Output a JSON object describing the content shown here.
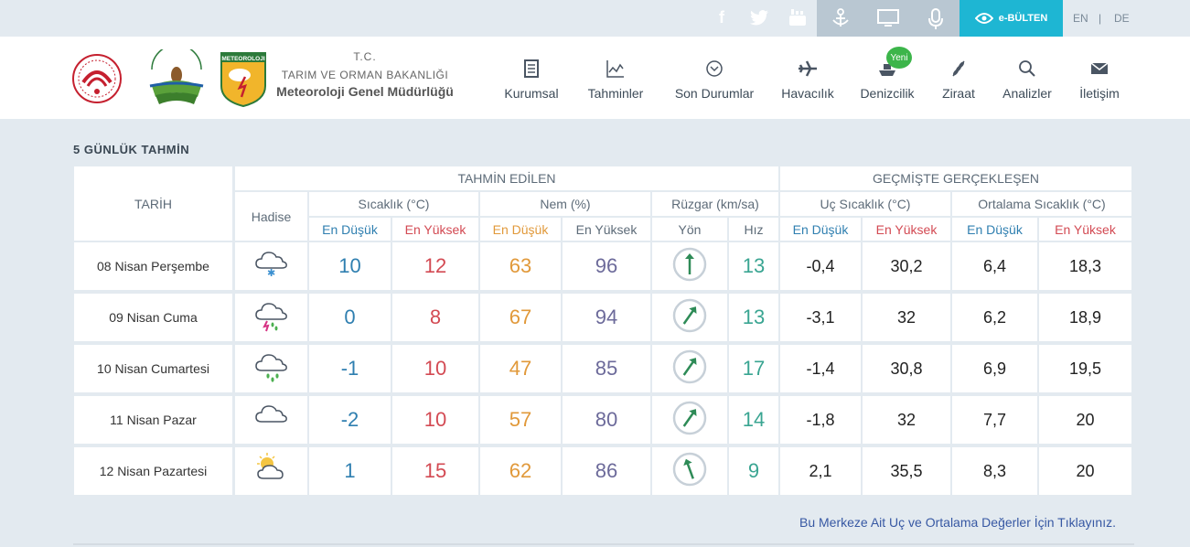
{
  "topbar": {
    "social": [
      "facebook-icon",
      "twitter-icon",
      "youtube-icon"
    ],
    "tools": [
      "sailor-icon",
      "monitor-icon",
      "microphone-icon"
    ],
    "ebulten_label": "e-BÜLTEN",
    "lang_en": "EN",
    "lang_sep": "|",
    "lang_de": "DE"
  },
  "header": {
    "ministry_line1": "T.C.",
    "ministry_line2": "TARIM VE ORMAN BAKANLIĞI",
    "ministry_line3": "Meteoroloji Genel Müdürlüğü",
    "logo3_text": "METEOROLOJI",
    "nav": [
      {
        "label": "Kurumsal",
        "icon": "document-icon"
      },
      {
        "label": "Tahminler",
        "icon": "chart-icon"
      },
      {
        "label": "Son Durumlar",
        "icon": "chevron-circle-icon"
      },
      {
        "label": "Havacılık",
        "icon": "airplane-icon"
      },
      {
        "label": "Denizcilik",
        "icon": "ship-icon"
      },
      {
        "label": "Ziraat",
        "icon": "wheat-icon"
      },
      {
        "label": "Analizler",
        "icon": "search-chart-icon"
      },
      {
        "label": "İletişim",
        "icon": "envelope-icon"
      }
    ],
    "new_badge": "Yeni"
  },
  "forecast": {
    "title": "5 GÜNLÜK TAHMİN",
    "head_date": "TARİH",
    "head_forecast": "TAHMİN EDİLEN",
    "head_past": "GEÇMİŞTE GERÇEKLEŞEN",
    "head_event": "Hadise",
    "head_temp": "Sıcaklık (°C)",
    "head_hum": "Nem (%)",
    "head_wind": "Rüzgar (km/sa)",
    "head_extreme": "Uç Sıcaklık (°C)",
    "head_avg": "Ortalama Sıcaklık (°C)",
    "sub_low": "En Düşük",
    "sub_high": "En Yüksek",
    "sub_dir": "Yön",
    "sub_speed": "Hız",
    "colors": {
      "blue": "#2f7fb0",
      "red": "#d34a53",
      "orange": "#e1993a",
      "purple": "#6c6a9a",
      "teal": "#3aa592"
    },
    "rows": [
      {
        "date": "08 Nisan Perşembe",
        "icon": "cloud-snow-icon",
        "t_low": "10",
        "t_high": "12",
        "h_low": "63",
        "h_high": "96",
        "wind_dir": "S",
        "speed": "13",
        "x_low": "-0,4",
        "x_high": "30,2",
        "a_low": "6,4",
        "a_high": "18,3"
      },
      {
        "date": "09 Nisan Cuma",
        "icon": "thunder-rain-icon",
        "t_low": "0",
        "t_high": "8",
        "h_low": "67",
        "h_high": "94",
        "wind_dir": "SW",
        "speed": "13",
        "x_low": "-3,1",
        "x_high": "32",
        "a_low": "6,2",
        "a_high": "18,9"
      },
      {
        "date": "10 Nisan Cumartesi",
        "icon": "cloud-rain-icon",
        "t_low": "-1",
        "t_high": "10",
        "h_low": "47",
        "h_high": "85",
        "wind_dir": "SW",
        "speed": "17",
        "x_low": "-1,4",
        "x_high": "30,8",
        "a_low": "6,9",
        "a_high": "19,5"
      },
      {
        "date": "11 Nisan Pazar",
        "icon": "cloud-icon",
        "t_low": "-2",
        "t_high": "10",
        "h_low": "57",
        "h_high": "80",
        "wind_dir": "SW",
        "speed": "14",
        "x_low": "-1,8",
        "x_high": "32",
        "a_low": "7,7",
        "a_high": "20"
      },
      {
        "date": "12 Nisan Pazartesi",
        "icon": "sun-cloud-icon",
        "t_low": "1",
        "t_high": "15",
        "h_low": "62",
        "h_high": "86",
        "wind_dir": "SSE",
        "speed": "9",
        "x_low": "2,1",
        "x_high": "35,5",
        "a_low": "8,3",
        "a_high": "20"
      }
    ]
  },
  "footer_link": "Bu Merkeze Ait Uç ve Ortalama Değerler İçin Tıklayınız."
}
